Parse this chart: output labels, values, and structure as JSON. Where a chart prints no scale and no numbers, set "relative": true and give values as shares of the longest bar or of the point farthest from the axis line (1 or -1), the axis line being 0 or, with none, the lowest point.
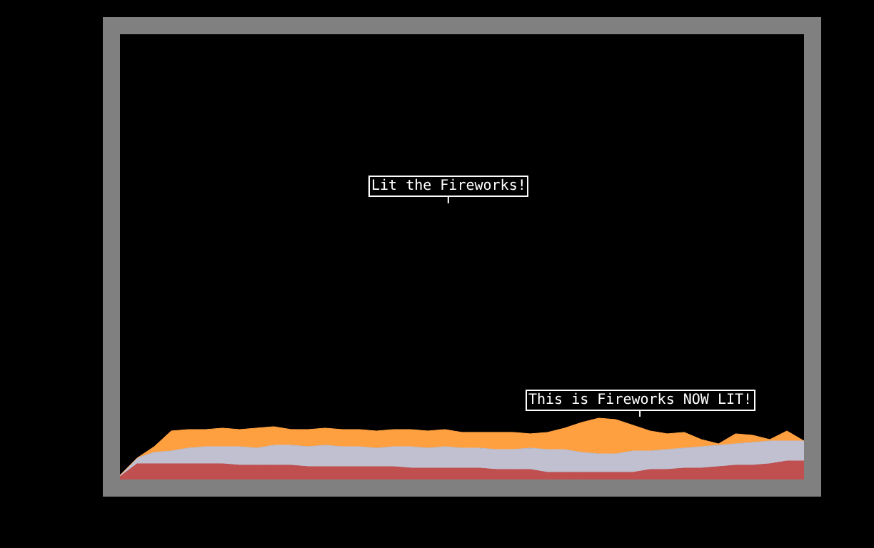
{
  "chart_data": {
    "type": "area",
    "relative": true,
    "stacked": true,
    "categories": [
      null,
      null,
      null,
      null,
      null,
      null,
      null,
      null,
      null,
      null,
      null,
      null,
      null,
      null,
      null,
      null,
      null,
      null,
      null,
      null,
      null,
      null,
      null,
      null,
      null,
      null,
      null,
      null,
      null,
      null,
      null,
      null,
      null,
      null,
      null,
      null,
      null,
      null,
      null,
      null,
      null
    ],
    "series": [
      {
        "color": "#c0504f",
        "values": [
          0.047,
          0.256,
          0.256,
          0.256,
          0.256,
          0.256,
          0.256,
          0.233,
          0.233,
          0.233,
          0.233,
          0.209,
          0.209,
          0.209,
          0.209,
          0.209,
          0.209,
          0.186,
          0.186,
          0.186,
          0.186,
          0.186,
          0.163,
          0.163,
          0.163,
          0.116,
          0.116,
          0.116,
          0.116,
          0.116,
          0.116,
          0.163,
          0.163,
          0.186,
          0.186,
          0.209,
          0.233,
          0.233,
          0.256,
          0.302,
          0.302
        ]
      },
      {
        "color": "#c0c0d0",
        "values": [
          0.023,
          0.093,
          0.186,
          0.209,
          0.256,
          0.279,
          0.279,
          0.302,
          0.279,
          0.326,
          0.326,
          0.326,
          0.349,
          0.326,
          0.326,
          0.302,
          0.326,
          0.349,
          0.326,
          0.349,
          0.326,
          0.326,
          0.326,
          0.326,
          0.349,
          0.372,
          0.372,
          0.326,
          0.302,
          0.302,
          0.349,
          0.302,
          0.326,
          0.326,
          0.349,
          0.349,
          0.349,
          0.372,
          0.372,
          0.326,
          0.326
        ]
      },
      {
        "color": "#ffa040",
        "values": [
          0,
          0,
          0.093,
          0.326,
          0.302,
          0.279,
          0.302,
          0.279,
          0.326,
          0.302,
          0.256,
          0.279,
          0.279,
          0.279,
          0.279,
          0.279,
          0.279,
          0.279,
          0.279,
          0.279,
          0.256,
          0.256,
          0.279,
          0.279,
          0.233,
          0.279,
          0.349,
          0.488,
          0.582,
          0.558,
          0.419,
          0.326,
          0.256,
          0.256,
          0.116,
          0.023,
          0.163,
          0.116,
          0.023,
          0.163,
          0
        ]
      }
    ],
    "annotations": [
      "Lit the Fireworks!",
      "This is Fireworks NOW LIT!"
    ]
  }
}
